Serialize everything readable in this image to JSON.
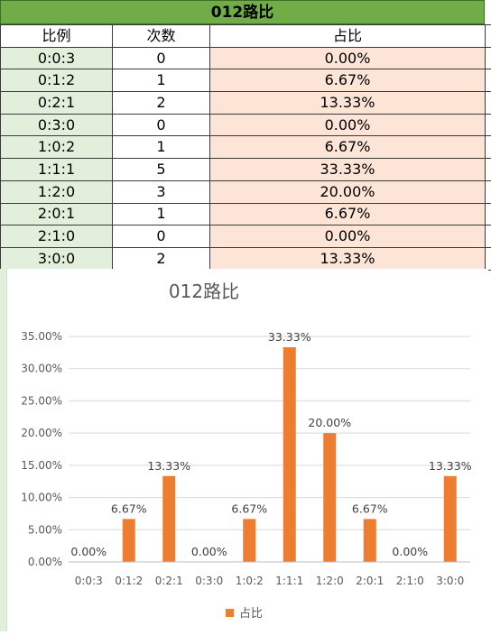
{
  "table": {
    "title": "012路比",
    "headers": [
      "比例",
      "次数",
      "占比"
    ],
    "rows": [
      [
        "0:0:3",
        "0",
        "0.00%"
      ],
      [
        "0:1:2",
        "1",
        "6.67%"
      ],
      [
        "0:2:1",
        "2",
        "13.33%"
      ],
      [
        "0:3:0",
        "0",
        "0.00%"
      ],
      [
        "1:0:2",
        "1",
        "6.67%"
      ],
      [
        "1:1:1",
        "5",
        "33.33%"
      ],
      [
        "1:2:0",
        "3",
        "20.00%"
      ],
      [
        "2:0:1",
        "1",
        "6.67%"
      ],
      [
        "2:1:0",
        "0",
        "0.00%"
      ],
      [
        "3:0:0",
        "2",
        "13.33%"
      ]
    ]
  },
  "chart_data": {
    "type": "bar",
    "title": "012路比",
    "categories": [
      "0:0:3",
      "0:1:2",
      "0:2:1",
      "0:3:0",
      "1:0:2",
      "1:1:1",
      "1:2:0",
      "2:0:1",
      "2:1:0",
      "3:0:0"
    ],
    "series": [
      {
        "name": "占比",
        "values": [
          0,
          6.67,
          13.33,
          0,
          6.67,
          33.33,
          20.0,
          6.67,
          0,
          13.33
        ],
        "color": "#ed7d31"
      }
    ],
    "data_labels": [
      "0.00%",
      "6.67%",
      "13.33%",
      "0.00%",
      "6.67%",
      "33.33%",
      "20.00%",
      "6.67%",
      "0.00%",
      "13.33%"
    ],
    "yticks": [
      "0.00%",
      "5.00%",
      "10.00%",
      "15.00%",
      "20.00%",
      "25.00%",
      "30.00%",
      "35.00%"
    ],
    "ylim": [
      0,
      35
    ],
    "xlabel": "",
    "ylabel": "",
    "grid": true,
    "legend_position": "bottom"
  }
}
